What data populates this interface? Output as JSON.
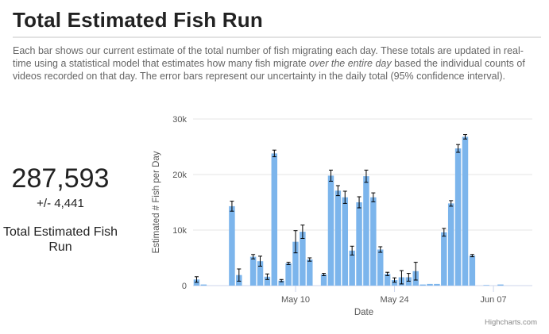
{
  "page": {
    "title": "Total Estimated Fish Run",
    "description": {
      "part1": "Each bar shows our current estimate of the total number of fish migrating each day. These totals are updated in real-time using a statistical model that estimates how many fish migrate ",
      "emphasis": "over the entire day",
      "part2": " based the individual counts of videos recorded on that day. The error bars represent our uncertainty in the daily total (95% confidence interval)."
    }
  },
  "summary": {
    "total": "287,593",
    "error": "+/- 4,441",
    "label": "Total Estimated Fish Run"
  },
  "chart_data": {
    "type": "bar",
    "xlabel": "Date",
    "ylabel": "Estimated # Fish per Day",
    "ylim": [
      0,
      30000
    ],
    "yticks": [
      0,
      10000,
      20000,
      30000
    ],
    "ytick_labels": [
      "0",
      "10k",
      "20k",
      "30k"
    ],
    "xtick_labels": [
      "May 10",
      "May 24",
      "Jun 07"
    ],
    "xtick_dates": [
      "May 10",
      "May 24",
      "Jun 07"
    ],
    "dates": [
      "Apr 26",
      "Apr 27",
      "Apr 28",
      "Apr 29",
      "Apr 30",
      "May 01",
      "May 02",
      "May 03",
      "May 04",
      "May 05",
      "May 06",
      "May 07",
      "May 08",
      "May 09",
      "May 10",
      "May 11",
      "May 12",
      "May 13",
      "May 14",
      "May 15",
      "May 16",
      "May 17",
      "May 18",
      "May 19",
      "May 20",
      "May 21",
      "May 22",
      "May 23",
      "May 24",
      "May 25",
      "May 26",
      "May 27",
      "May 28",
      "May 29",
      "May 30",
      "May 31",
      "Jun 01",
      "Jun 02",
      "Jun 03",
      "Jun 04",
      "Jun 05",
      "Jun 06",
      "Jun 07",
      "Jun 08",
      "Jun 09",
      "Jun 10",
      "Jun 11",
      "Jun 12"
    ],
    "values": [
      1100,
      200,
      0,
      0,
      0,
      14300,
      1900,
      0,
      5200,
      4400,
      1600,
      23800,
      900,
      4000,
      7900,
      9700,
      4700,
      0,
      2000,
      19800,
      17100,
      15900,
      6300,
      15000,
      19700,
      15900,
      6500,
      2100,
      1000,
      1500,
      1500,
      2600,
      200,
      300,
      300,
      9600,
      14800,
      24700,
      26800,
      5400,
      0,
      100,
      0,
      200,
      0,
      0,
      0,
      0
    ],
    "error_low": [
      500,
      0,
      0,
      0,
      0,
      900,
      1100,
      0,
      400,
      900,
      500,
      600,
      200,
      200,
      2000,
      1200,
      300,
      0,
      200,
      1000,
      900,
      1100,
      800,
      1000,
      1100,
      800,
      500,
      300,
      400,
      1200,
      700,
      1600,
      0,
      0,
      0,
      700,
      500,
      700,
      400,
      200,
      0,
      0,
      0,
      0,
      0,
      0,
      0,
      0
    ],
    "error_high": [
      500,
      0,
      0,
      0,
      0,
      900,
      1100,
      0,
      400,
      900,
      500,
      600,
      200,
      200,
      2000,
      1200,
      300,
      0,
      200,
      1000,
      900,
      1100,
      800,
      1000,
      1100,
      800,
      500,
      300,
      400,
      1200,
      700,
      1600,
      0,
      0,
      0,
      700,
      500,
      700,
      400,
      200,
      0,
      0,
      0,
      0,
      0,
      0,
      0,
      0
    ],
    "color": "#7cb5ec",
    "grid": true,
    "credit": "Highcharts.com"
  }
}
